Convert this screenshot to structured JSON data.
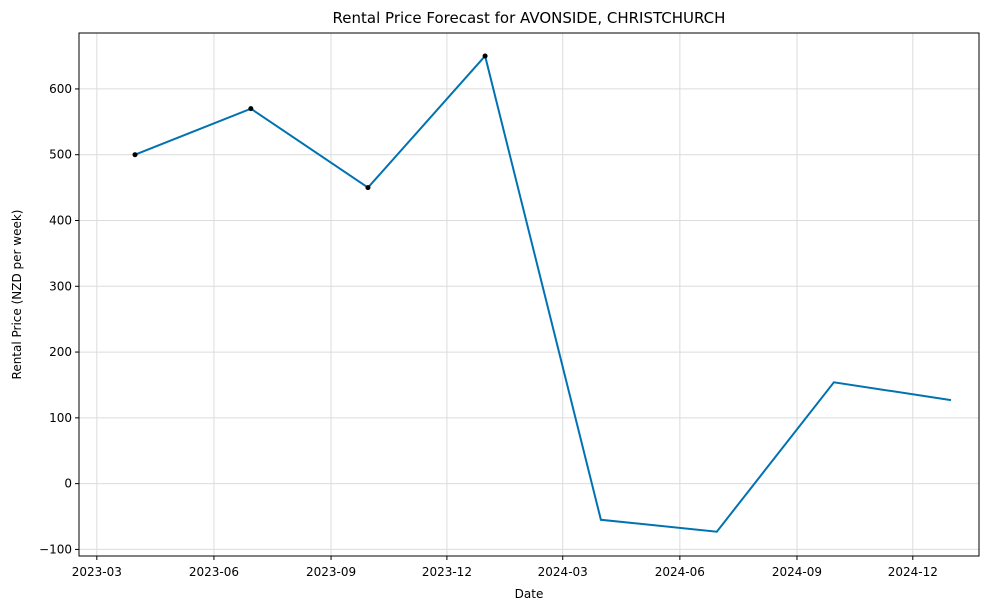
{
  "chart_data": {
    "type": "line",
    "title": "Rental Price Forecast for AVONSIDE, CHRISTCHURCH",
    "xlabel": "Date",
    "ylabel": "Rental Price (NZD per week)",
    "x_axis_type": "date",
    "xlim": [
      "2023-02-15",
      "2025-01-22"
    ],
    "ylim": [
      -110,
      685
    ],
    "x_ticks": [
      "2023-03-01",
      "2023-06-01",
      "2023-09-01",
      "2023-12-01",
      "2024-03-01",
      "2024-06-01",
      "2024-09-01",
      "2024-12-01"
    ],
    "x_tick_labels": [
      "2023-03",
      "2023-06",
      "2023-09",
      "2023-12",
      "2024-03",
      "2024-06",
      "2024-09",
      "2024-12"
    ],
    "y_ticks": [
      -100,
      0,
      100,
      200,
      300,
      400,
      500,
      600
    ],
    "y_tick_labels": [
      "−100",
      "0",
      "100",
      "200",
      "300",
      "400",
      "500",
      "600"
    ],
    "grid": true,
    "series": [
      {
        "kind": "forecast-line",
        "color": "#0072B2",
        "points": [
          {
            "x": "2023-03-31",
            "y": 500
          },
          {
            "x": "2023-06-30",
            "y": 570
          },
          {
            "x": "2023-09-30",
            "y": 450
          },
          {
            "x": "2023-12-31",
            "y": 650
          },
          {
            "x": "2024-03-31",
            "y": -55
          },
          {
            "x": "2024-06-30",
            "y": -73
          },
          {
            "x": "2024-09-30",
            "y": 154
          },
          {
            "x": "2024-12-31",
            "y": 127
          }
        ]
      },
      {
        "kind": "observed-points",
        "color": "#000000",
        "points": [
          {
            "x": "2023-03-31",
            "y": 500
          },
          {
            "x": "2023-06-30",
            "y": 570
          },
          {
            "x": "2023-09-30",
            "y": 450
          },
          {
            "x": "2023-12-31",
            "y": 650
          }
        ]
      }
    ]
  }
}
